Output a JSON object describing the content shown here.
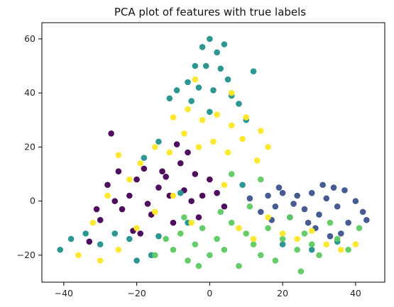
{
  "chart_data": {
    "type": "scatter",
    "title": "PCA plot of features with true labels",
    "xlabel": "",
    "ylabel": "",
    "xlim": [
      -46,
      48
    ],
    "ylim": [
      -30,
      66
    ],
    "x_ticks": [
      -40,
      -20,
      0,
      20,
      40
    ],
    "y_ticks": [
      -20,
      0,
      20,
      40,
      60
    ],
    "x_tick_labels": [
      "−40",
      "−20",
      "0",
      "20",
      "40"
    ],
    "y_tick_labels": [
      "−20",
      "0",
      "20",
      "40",
      "60"
    ],
    "grid": false,
    "legend": "none",
    "series": [
      {
        "color": "#440154",
        "points": [
          [
            -33,
            -15
          ],
          [
            -30,
            -7
          ],
          [
            -28,
            6
          ],
          [
            -25,
            11
          ],
          [
            -24,
            -3
          ],
          [
            -22,
            2
          ],
          [
            -21,
            -11
          ],
          [
            -20,
            8
          ],
          [
            -18,
            12
          ],
          [
            -16,
            -5
          ],
          [
            -14,
            5
          ],
          [
            -12,
            9
          ],
          [
            -11,
            2
          ],
          [
            -10,
            -8
          ],
          [
            -8,
            14
          ],
          [
            -7,
            4
          ],
          [
            -6,
            18
          ],
          [
            -5,
            0
          ],
          [
            -4,
            10
          ],
          [
            -3,
            -6
          ],
          [
            -2,
            2
          ],
          [
            0,
            8
          ],
          [
            2,
            3
          ],
          [
            4,
            -2
          ],
          [
            -26,
            0
          ],
          [
            -17,
            -1
          ],
          [
            -9,
            21
          ],
          [
            -27,
            25
          ],
          [
            -13,
            11
          ],
          [
            -19,
            -12
          ],
          [
            -31,
            -3
          ]
        ]
      },
      {
        "color": "#3b528b",
        "points": [
          [
            14,
            -4
          ],
          [
            16,
            2
          ],
          [
            18,
            -2
          ],
          [
            20,
            3
          ],
          [
            22,
            -6
          ],
          [
            24,
            2
          ],
          [
            26,
            -3
          ],
          [
            28,
            3
          ],
          [
            30,
            -5
          ],
          [
            32,
            1
          ],
          [
            34,
            5
          ],
          [
            35,
            -2
          ],
          [
            37,
            4
          ],
          [
            38,
            -8
          ],
          [
            40,
            0
          ],
          [
            42,
            -4
          ],
          [
            43,
            -7
          ],
          [
            27,
            -8
          ],
          [
            19,
            5
          ],
          [
            31,
            6
          ],
          [
            36,
            -12
          ],
          [
            23,
            -1
          ],
          [
            17,
            -7
          ],
          [
            29,
            -10
          ],
          [
            11,
            1
          ],
          [
            33,
            -13
          ]
        ]
      },
      {
        "color": "#21918c",
        "points": [
          [
            -2,
            57
          ],
          [
            0,
            60
          ],
          [
            2,
            55
          ],
          [
            4,
            58
          ],
          [
            -4,
            50
          ],
          [
            -1,
            50
          ],
          [
            3,
            49
          ],
          [
            5,
            45
          ],
          [
            -6,
            44
          ],
          [
            -3,
            42
          ],
          [
            1,
            41
          ],
          [
            6,
            39
          ],
          [
            -9,
            41
          ],
          [
            -5,
            37
          ],
          [
            8,
            36
          ],
          [
            -11,
            38
          ],
          [
            12,
            48
          ],
          [
            10,
            30
          ],
          [
            -14,
            22
          ],
          [
            -26,
            -12
          ],
          [
            -30,
            -16
          ],
          [
            -34,
            -12
          ],
          [
            -38,
            -14
          ],
          [
            -41,
            -18
          ],
          [
            -20,
            -22
          ],
          [
            -22,
            -14
          ],
          [
            -14,
            -13
          ],
          [
            -6,
            -8
          ],
          [
            9,
            6
          ],
          [
            20,
            -16
          ],
          [
            28,
            -18
          ],
          [
            35,
            -15
          ],
          [
            -8,
            3
          ],
          [
            -18,
            16
          ],
          [
            0,
            33
          ],
          [
            -16,
            -20
          ]
        ]
      },
      {
        "color": "#5ec962",
        "points": [
          [
            -15,
            -20
          ],
          [
            -12,
            -14
          ],
          [
            -10,
            -18
          ],
          [
            -8,
            -12
          ],
          [
            -6,
            -22
          ],
          [
            -4,
            -16
          ],
          [
            -2,
            -10
          ],
          [
            0,
            -20
          ],
          [
            2,
            -14
          ],
          [
            4,
            -18
          ],
          [
            6,
            -8
          ],
          [
            8,
            -24
          ],
          [
            10,
            -12
          ],
          [
            12,
            -16
          ],
          [
            14,
            -20
          ],
          [
            16,
            -10
          ],
          [
            18,
            -22
          ],
          [
            20,
            -14
          ],
          [
            22,
            -6
          ],
          [
            24,
            -18
          ],
          [
            26,
            -12
          ],
          [
            28,
            -16
          ],
          [
            30,
            -20
          ],
          [
            33,
            -8
          ],
          [
            35,
            -14
          ],
          [
            38,
            -18
          ],
          [
            41,
            -10
          ],
          [
            3,
            -4
          ],
          [
            11,
            -2
          ],
          [
            -3,
            -24
          ],
          [
            25,
            -26
          ],
          [
            -7,
            -6
          ],
          [
            6,
            10
          ],
          [
            14,
            8
          ]
        ]
      },
      {
        "color": "#fde725",
        "points": [
          [
            -10,
            31
          ],
          [
            -6,
            34
          ],
          [
            -2,
            30
          ],
          [
            2,
            32
          ],
          [
            6,
            28
          ],
          [
            10,
            31
          ],
          [
            14,
            26
          ],
          [
            16,
            20
          ],
          [
            13,
            15
          ],
          [
            9,
            23
          ],
          [
            5,
            18
          ],
          [
            1,
            22
          ],
          [
            -3,
            20
          ],
          [
            -7,
            25
          ],
          [
            -11,
            18
          ],
          [
            -15,
            20
          ],
          [
            -19,
            14
          ],
          [
            -22,
            8
          ],
          [
            -25,
            17
          ],
          [
            -28,
            2
          ],
          [
            -32,
            -8
          ],
          [
            -36,
            -20
          ],
          [
            -30,
            -22
          ],
          [
            -25,
            -18
          ],
          [
            -20,
            -10
          ],
          [
            -15,
            -4
          ],
          [
            -10,
            2
          ],
          [
            -5,
            -8
          ],
          [
            4,
            6
          ],
          [
            8,
            -10
          ],
          [
            12,
            -14
          ],
          [
            16,
            -6
          ],
          [
            20,
            -12
          ],
          [
            24,
            -14
          ],
          [
            28,
            -11
          ],
          [
            32,
            -16
          ],
          [
            36,
            -18
          ],
          [
            40,
            -16
          ],
          [
            6,
            40
          ],
          [
            -4,
            45
          ]
        ]
      }
    ]
  }
}
